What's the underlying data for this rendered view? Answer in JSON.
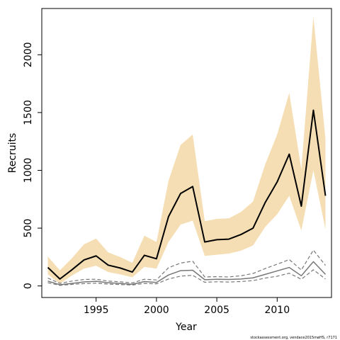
{
  "chart_data": {
    "type": "line",
    "xlabel": "Year",
    "ylabel": "Recruits",
    "xlim": [
      1990.5,
      2014.5
    ],
    "ylim": [
      -100,
      2400
    ],
    "x_ticks": [
      1995,
      2000,
      2005,
      2010
    ],
    "y_ticks": [
      0,
      500,
      1000,
      1500,
      2000
    ],
    "grid": false,
    "footnote": "stockassessment.org, vendace2015møHS, r7171",
    "colors": {
      "band": "#f5deb3",
      "main_line": "#000000",
      "secondary": "#777777"
    },
    "x": [
      1991,
      1992,
      1993,
      1994,
      1995,
      1996,
      1997,
      1998,
      1999,
      2000,
      2001,
      2002,
      2003,
      2004,
      2005,
      2006,
      2007,
      2008,
      2009,
      2010,
      2011,
      2012,
      2013,
      2014
    ],
    "series": [
      {
        "role": "estimate",
        "values": [
          160,
          60,
          140,
          225,
          260,
          180,
          155,
          120,
          265,
          235,
          600,
          800,
          860,
          380,
          400,
          405,
          445,
          500,
          720,
          900,
          1140,
          690,
          1520,
          780
        ],
        "band_lower": [
          100,
          20,
          90,
          150,
          175,
          120,
          100,
          75,
          165,
          150,
          380,
          530,
          565,
          260,
          270,
          280,
          305,
          350,
          510,
          620,
          780,
          480,
          1000,
          490
        ],
        "band_upper": [
          255,
          135,
          240,
          360,
          410,
          290,
          250,
          200,
          435,
          380,
          910,
          1220,
          1310,
          560,
          580,
          585,
          640,
          730,
          1050,
          1310,
          1670,
          1010,
          2330,
          1270
        ]
      },
      {
        "role": "secondary",
        "values": [
          42,
          10,
          22,
          35,
          40,
          28,
          22,
          14,
          38,
          30,
          95,
          132,
          136,
          54,
          58,
          56,
          60,
          70,
          100,
          130,
          160,
          88,
          210,
          100
        ],
        "band_lower": [
          28,
          5,
          14,
          20,
          24,
          16,
          12,
          8,
          22,
          18,
          60,
          85,
          92,
          32,
          36,
          34,
          38,
          46,
          68,
          84,
          110,
          58,
          140,
          60
        ],
        "band_upper": [
          68,
          22,
          42,
          56,
          58,
          42,
          36,
          26,
          58,
          52,
          158,
          198,
          214,
          78,
          80,
          78,
          88,
          108,
          150,
          188,
          228,
          138,
          310,
          178
        ]
      }
    ]
  }
}
